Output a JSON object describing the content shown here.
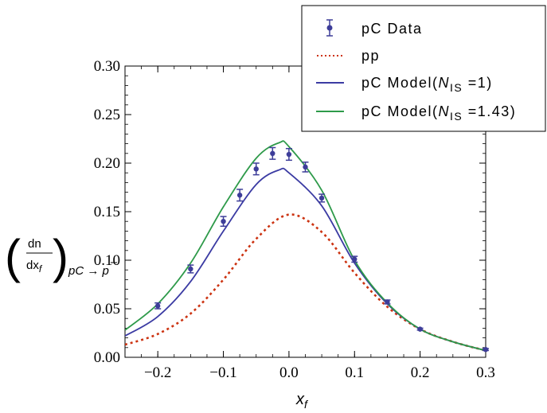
{
  "chart_data": {
    "type": "line",
    "xlabel": {
      "main": "x",
      "sub": "f"
    },
    "ylabel": {
      "num": "dn",
      "den_main": "dx",
      "den_sub": "f",
      "subscript": "pC → p"
    },
    "xlim": [
      -0.25,
      0.3
    ],
    "ylim": [
      0.0,
      0.3
    ],
    "x_ticks": [
      -0.2,
      -0.1,
      0.0,
      0.1,
      0.2,
      0.3
    ],
    "x_tick_labels": [
      "−0.2",
      "−0.1",
      "0.0",
      "0.1",
      "0.2",
      "0.3"
    ],
    "y_ticks": [
      0.0,
      0.05,
      0.1,
      0.15,
      0.2,
      0.25,
      0.3
    ],
    "y_tick_labels": [
      "0.00",
      "0.05",
      "0.10",
      "0.15",
      "0.20",
      "0.25",
      "0.30"
    ],
    "grid": false,
    "legend_position": "top-right",
    "legend": [
      {
        "label": "pC  Data",
        "style": "points"
      },
      {
        "label": "pp",
        "style": "dashed"
      },
      {
        "label_main": "pC Model(",
        "label_var": "N",
        "label_sub": "IS",
        "label_rest": " =1)",
        "style": "line"
      },
      {
        "label_main": "pC Model(",
        "label_var": "N",
        "label_sub": "IS",
        "label_rest": " =1.43)",
        "style": "line"
      }
    ],
    "series": [
      {
        "name": "pC  Data",
        "type": "scatter",
        "color": "#3d3d99",
        "x": [
          -0.2,
          -0.15,
          -0.1,
          -0.075,
          -0.05,
          -0.025,
          0.0,
          0.025,
          0.05,
          0.1,
          0.15,
          0.2,
          0.3
        ],
        "y": [
          0.053,
          0.091,
          0.14,
          0.167,
          0.194,
          0.21,
          0.209,
          0.196,
          0.164,
          0.101,
          0.057,
          0.029,
          0.008
        ],
        "err": [
          0.003,
          0.004,
          0.005,
          0.006,
          0.006,
          0.006,
          0.006,
          0.005,
          0.004,
          0.003,
          0.002,
          0.001,
          0.001
        ]
      },
      {
        "name": "pp",
        "type": "line",
        "dash": true,
        "color": "#cc3311",
        "x": [
          -0.25,
          -0.2,
          -0.15,
          -0.1,
          -0.05,
          0.0,
          0.05,
          0.1,
          0.15,
          0.2,
          0.25,
          0.3
        ],
        "y": [
          0.013,
          0.024,
          0.045,
          0.08,
          0.122,
          0.147,
          0.129,
          0.087,
          0.052,
          0.029,
          0.016,
          0.007
        ]
      },
      {
        "name": "pC Model(NIS =1)",
        "type": "line",
        "color": "#3b3ba3",
        "x": [
          -0.25,
          -0.2,
          -0.15,
          -0.1,
          -0.05,
          -0.015,
          0.0,
          0.05,
          0.1,
          0.15,
          0.2,
          0.25,
          0.3
        ],
        "y": [
          0.022,
          0.042,
          0.078,
          0.13,
          0.178,
          0.193,
          0.19,
          0.156,
          0.097,
          0.055,
          0.029,
          0.016,
          0.007
        ]
      },
      {
        "name": "pC Model(NIS =1.43)",
        "type": "line",
        "color": "#2e9a4a",
        "x": [
          -0.25,
          -0.2,
          -0.15,
          -0.1,
          -0.05,
          -0.015,
          0.0,
          0.05,
          0.1,
          0.15,
          0.2,
          0.25,
          0.3
        ],
        "y": [
          0.028,
          0.055,
          0.097,
          0.155,
          0.205,
          0.221,
          0.217,
          0.172,
          0.1,
          0.056,
          0.029,
          0.016,
          0.007
        ]
      }
    ]
  }
}
